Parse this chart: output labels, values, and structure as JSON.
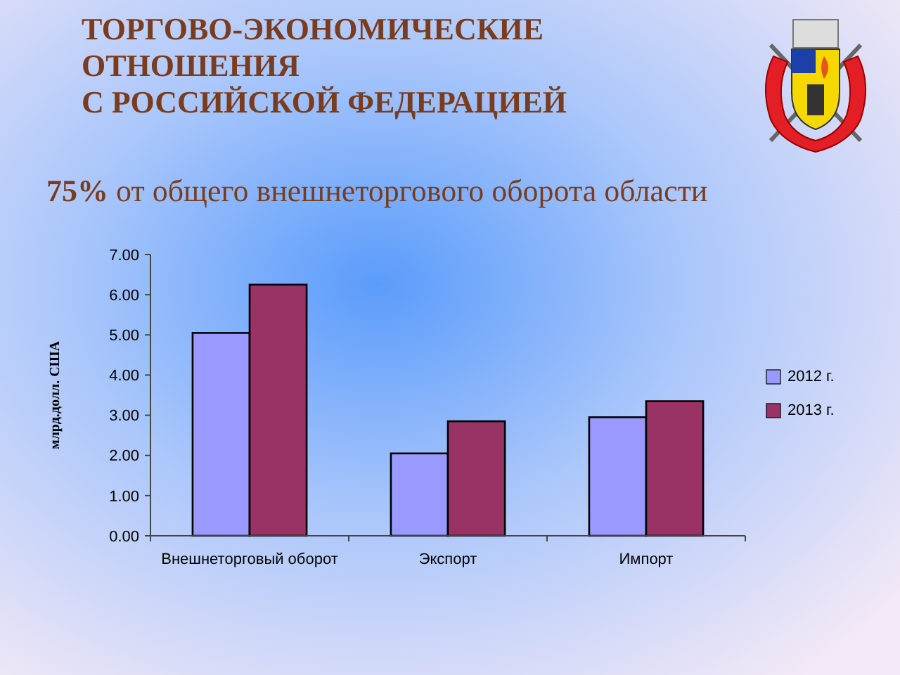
{
  "chart_data": {
    "type": "bar",
    "title": "ТОРГОВО-ЭКОНОМИЧЕСКИЕ\nОТНОШЕНИЯ\nС РОССИЙСКОЙ ФЕДЕРАЦИЕЙ",
    "subtitle": "75% от общего внешнеторгового оборота области",
    "ylabel": "млрд.долл. США",
    "categories": [
      "Внешнеторговый оборот",
      "Экспорт",
      "Импорт"
    ],
    "series": [
      {
        "name": "2012 г.",
        "color": "#9999ff",
        "values": [
          5.05,
          2.05,
          2.95
        ]
      },
      {
        "name": "2013 г.",
        "color": "#993366",
        "values": [
          6.25,
          2.85,
          3.35
        ]
      }
    ],
    "ylim": [
      0,
      7
    ],
    "yticks": [
      {
        "value": 0,
        "label": "0.00"
      },
      {
        "value": 1,
        "label": "1.00"
      },
      {
        "value": 2,
        "label": "2.00"
      },
      {
        "value": 3,
        "label": "3.00"
      },
      {
        "value": 4,
        "label": "4.00"
      },
      {
        "value": 5,
        "label": "5.00"
      },
      {
        "value": 6,
        "label": "6.00"
      },
      {
        "value": 7,
        "label": "7.00"
      }
    ],
    "legend": "right"
  }
}
